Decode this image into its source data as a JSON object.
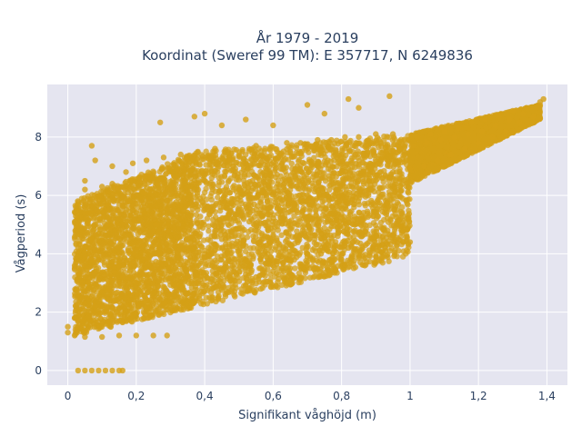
{
  "chart_data": {
    "type": "scatter",
    "title": "År 1979 - 2019",
    "subtitle": "Koordinat (Sweref 99 TM): E 357717, N 6249836",
    "xlabel": "Signifikant våghöjd (m)",
    "ylabel": "Vågperiod (s)",
    "xlim": [
      -0.06,
      1.46
    ],
    "ylim": [
      -0.5,
      9.8
    ],
    "x_ticks": [
      "0",
      "0,2",
      "0,4",
      "0,6",
      "0,8",
      "1",
      "1,2",
      "1,4"
    ],
    "x_tick_values": [
      0,
      0.2,
      0.4,
      0.6,
      0.8,
      1.0,
      1.2,
      1.4
    ],
    "y_ticks": [
      "0",
      "2",
      "4",
      "6",
      "8"
    ],
    "y_tick_values": [
      0,
      2,
      4,
      6,
      8
    ],
    "grid": true,
    "marker_color": "#D4A017",
    "background_color": "#E5E5F0",
    "series": [
      {
        "points": [
          [
            0.03,
            0
          ],
          [
            0.05,
            0
          ],
          [
            0.07,
            0
          ],
          [
            0.09,
            0
          ],
          [
            0.11,
            0
          ],
          [
            0.13,
            0
          ],
          [
            0.15,
            0
          ],
          [
            0.16,
            0
          ],
          [
            0.0,
            1.5
          ],
          [
            0.0,
            1.3
          ],
          [
            0.02,
            1.2
          ],
          [
            0.05,
            1.15
          ],
          [
            0.1,
            1.15
          ],
          [
            0.15,
            1.2
          ],
          [
            0.2,
            1.2
          ],
          [
            0.25,
            1.2
          ],
          [
            0.29,
            1.2
          ],
          [
            0.02,
            1.8
          ],
          [
            0.03,
            2.5
          ],
          [
            0.02,
            3.5
          ],
          [
            0.03,
            4.2
          ],
          [
            0.03,
            5.0
          ],
          [
            0.03,
            5.7
          ],
          [
            0.05,
            6.2
          ],
          [
            0.05,
            6.5
          ],
          [
            0.07,
            7.7
          ],
          [
            0.08,
            7.2
          ],
          [
            0.06,
            3.0
          ],
          [
            0.07,
            4.5
          ],
          [
            0.06,
            5.4
          ],
          [
            0.08,
            2.2
          ],
          [
            0.09,
            3.8
          ],
          [
            0.1,
            6.3
          ],
          [
            0.1,
            1.6
          ],
          [
            0.12,
            2.8
          ],
          [
            0.12,
            5.2
          ],
          [
            0.13,
            6.4
          ],
          [
            0.13,
            7.0
          ],
          [
            0.15,
            1.7
          ],
          [
            0.15,
            3.6
          ],
          [
            0.16,
            4.7
          ],
          [
            0.17,
            6.8
          ],
          [
            0.18,
            2.2
          ],
          [
            0.18,
            5.8
          ],
          [
            0.19,
            7.1
          ],
          [
            0.2,
            3.0
          ],
          [
            0.21,
            4.4
          ],
          [
            0.22,
            6.1
          ],
          [
            0.23,
            7.2
          ],
          [
            0.24,
            1.9
          ],
          [
            0.25,
            3.5
          ],
          [
            0.26,
            5.0
          ],
          [
            0.27,
            6.6
          ],
          [
            0.28,
            7.3
          ],
          [
            0.27,
            8.5
          ],
          [
            0.28,
            2.3
          ],
          [
            0.3,
            4.1
          ],
          [
            0.31,
            5.7
          ],
          [
            0.32,
            6.9
          ],
          [
            0.33,
            7.4
          ],
          [
            0.33,
            2.5
          ],
          [
            0.35,
            3.7
          ],
          [
            0.36,
            5.3
          ],
          [
            0.37,
            6.5
          ],
          [
            0.38,
            7.5
          ],
          [
            0.39,
            2.7
          ],
          [
            0.4,
            4.0
          ],
          [
            0.41,
            5.6
          ],
          [
            0.42,
            6.8
          ],
          [
            0.43,
            7.6
          ],
          [
            0.44,
            2.9
          ],
          [
            0.45,
            4.5
          ],
          [
            0.46,
            6.0
          ],
          [
            0.47,
            7.3
          ],
          [
            0.48,
            3.1
          ],
          [
            0.49,
            4.8
          ],
          [
            0.5,
            6.2
          ],
          [
            0.51,
            7.5
          ],
          [
            0.52,
            3.3
          ],
          [
            0.53,
            5.1
          ],
          [
            0.54,
            6.5
          ],
          [
            0.55,
            7.7
          ],
          [
            0.56,
            3.5
          ],
          [
            0.57,
            5.3
          ],
          [
            0.58,
            6.7
          ],
          [
            0.59,
            7.6
          ],
          [
            0.6,
            3.6
          ],
          [
            0.62,
            5.5
          ],
          [
            0.63,
            6.9
          ],
          [
            0.64,
            7.8
          ],
          [
            0.65,
            3.8
          ],
          [
            0.66,
            5.7
          ],
          [
            0.67,
            7.0
          ],
          [
            0.68,
            7.8
          ],
          [
            0.7,
            3.9
          ],
          [
            0.71,
            5.9
          ],
          [
            0.72,
            7.1
          ],
          [
            0.73,
            7.9
          ],
          [
            0.74,
            4.0
          ],
          [
            0.75,
            6.0
          ],
          [
            0.76,
            7.2
          ],
          [
            0.77,
            7.9
          ],
          [
            0.78,
            4.1
          ],
          [
            0.79,
            6.2
          ],
          [
            0.8,
            7.3
          ],
          [
            0.81,
            8.0
          ],
          [
            0.82,
            4.2
          ],
          [
            0.83,
            6.3
          ],
          [
            0.84,
            7.4
          ],
          [
            0.85,
            8.0
          ],
          [
            0.87,
            4.3
          ],
          [
            0.88,
            6.5
          ],
          [
            0.89,
            7.5
          ],
          [
            0.9,
            8.1
          ],
          [
            0.92,
            6.6
          ],
          [
            0.93,
            7.5
          ],
          [
            0.94,
            9.4
          ],
          [
            0.95,
            8.1
          ],
          [
            0.96,
            6.8
          ],
          [
            0.97,
            7.6
          ],
          [
            0.98,
            4.4
          ],
          [
            1.0,
            4.4
          ],
          [
            1.0,
            6.9
          ],
          [
            1.01,
            7.7
          ],
          [
            1.02,
            8.0
          ],
          [
            1.04,
            7.0
          ],
          [
            1.05,
            7.8
          ],
          [
            1.06,
            8.1
          ],
          [
            1.08,
            7.2
          ],
          [
            1.09,
            7.9
          ],
          [
            1.1,
            8.2
          ],
          [
            1.12,
            7.4
          ],
          [
            1.13,
            8.0
          ],
          [
            1.14,
            8.3
          ],
          [
            1.16,
            7.6
          ],
          [
            1.17,
            8.1
          ],
          [
            1.18,
            8.5
          ],
          [
            1.2,
            7.8
          ],
          [
            1.21,
            8.2
          ],
          [
            1.22,
            8.6
          ],
          [
            1.24,
            8.0
          ],
          [
            1.25,
            8.4
          ],
          [
            1.26,
            8.7
          ],
          [
            1.28,
            8.2
          ],
          [
            1.29,
            8.6
          ],
          [
            1.3,
            8.9
          ],
          [
            1.32,
            8.5
          ],
          [
            1.33,
            8.8
          ],
          [
            1.34,
            9.0
          ],
          [
            1.36,
            8.7
          ],
          [
            1.37,
            9.0
          ],
          [
            1.38,
            9.2
          ],
          [
            1.39,
            9.3
          ],
          [
            0.37,
            8.7
          ],
          [
            0.4,
            8.8
          ],
          [
            0.45,
            8.4
          ],
          [
            0.52,
            8.6
          ],
          [
            0.6,
            8.4
          ],
          [
            0.7,
            9.1
          ],
          [
            0.75,
            8.8
          ],
          [
            0.82,
            9.3
          ],
          [
            0.85,
            9.0
          ],
          [
            0.55,
            3.2
          ],
          [
            0.6,
            3.4
          ],
          [
            0.65,
            3.5
          ],
          [
            0.7,
            3.6
          ],
          [
            0.75,
            3.7
          ],
          [
            0.8,
            3.8
          ],
          [
            0.85,
            3.85
          ],
          [
            0.9,
            3.9
          ]
        ],
        "bands": [
          {
            "x0": 0.02,
            "x1": 0.38,
            "ylo0": 1.2,
            "ylo1": 2.2,
            "yhi0": 5.8,
            "yhi1": 7.5
          },
          {
            "x0": 0.38,
            "x1": 1.0,
            "ylo0": 2.2,
            "ylo1": 3.9,
            "yhi0": 7.5,
            "yhi1": 8.1
          },
          {
            "x0": 1.0,
            "x1": 1.38,
            "ylo0": 6.4,
            "ylo1": 8.6,
            "yhi0": 8.1,
            "yhi1": 9.1
          }
        ]
      }
    ]
  }
}
